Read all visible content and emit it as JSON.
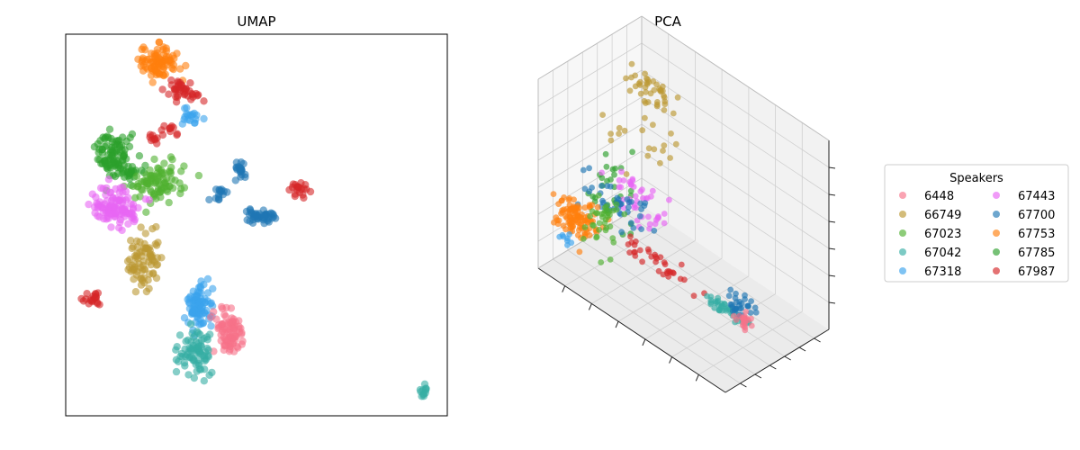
{
  "chart_data": [
    {
      "type": "scatter",
      "title": "UMAP",
      "xlabel": "",
      "ylabel": "",
      "ticks": "none",
      "xlim": [
        0,
        100
      ],
      "ylim": [
        0,
        100
      ],
      "clusters": [
        {
          "speaker": "67753",
          "x": 24.5,
          "y": 92.5,
          "sx": 2.5,
          "sy": 2.0,
          "n": 90
        },
        {
          "speaker": "67987",
          "x": 31.5,
          "y": 85.2,
          "sx": 2.3,
          "sy": 1.4,
          "n": 40
        },
        {
          "speaker": "67318",
          "x": 32.5,
          "y": 78.6,
          "sx": 1.3,
          "sy": 1.3,
          "n": 18
        },
        {
          "speaker": "67987",
          "x": 27.0,
          "y": 75.3,
          "sx": 0.9,
          "sy": 0.9,
          "n": 10
        },
        {
          "speaker": "67987",
          "x": 24.0,
          "y": 72.7,
          "sx": 1.2,
          "sy": 0.7,
          "n": 10
        },
        {
          "speaker": "67785",
          "x": 12.5,
          "y": 69.0,
          "sx": 2.3,
          "sy": 3.5,
          "n": 95
        },
        {
          "speaker": "67785",
          "x": 17.5,
          "y": 63.5,
          "sx": 1.6,
          "sy": 1.0,
          "n": 20
        },
        {
          "speaker": "67023",
          "x": 24.5,
          "y": 60.5,
          "sx": 3.0,
          "sy": 2.5,
          "n": 90
        },
        {
          "speaker": "67443",
          "x": 13.0,
          "y": 55.0,
          "sx": 3.6,
          "sy": 2.5,
          "n": 110
        },
        {
          "speaker": "67700",
          "x": 45.3,
          "y": 64.5,
          "sx": 0.9,
          "sy": 1.4,
          "n": 20
        },
        {
          "speaker": "67700",
          "x": 40.0,
          "y": 58.5,
          "sx": 1.0,
          "sy": 0.9,
          "n": 15
        },
        {
          "speaker": "67987",
          "x": 61.0,
          "y": 59.0,
          "sx": 1.2,
          "sy": 1.1,
          "n": 20
        },
        {
          "speaker": "67700",
          "x": 51.5,
          "y": 52.3,
          "sx": 2.0,
          "sy": 1.2,
          "n": 45
        },
        {
          "speaker": "66749",
          "x": 20.0,
          "y": 40.5,
          "sx": 2.4,
          "sy": 3.5,
          "n": 80
        },
        {
          "speaker": "67987",
          "x": 7.5,
          "y": 30.5,
          "sx": 2.0,
          "sy": 0.8,
          "n": 20
        },
        {
          "speaker": "67318",
          "x": 35.0,
          "y": 29.0,
          "sx": 1.6,
          "sy": 2.8,
          "n": 85
        },
        {
          "speaker": "6448",
          "x": 43.0,
          "y": 22.5,
          "sx": 1.8,
          "sy": 3.0,
          "n": 85
        },
        {
          "speaker": "67042",
          "x": 34.0,
          "y": 16.0,
          "sx": 2.2,
          "sy": 3.3,
          "n": 80
        },
        {
          "speaker": "67042",
          "x": 94.0,
          "y": 6.5,
          "sx": 0.6,
          "sy": 0.8,
          "n": 12
        }
      ]
    },
    {
      "type": "scatter",
      "projection": "3d",
      "title": "PCA",
      "xlabel": "",
      "ylabel": "",
      "zlabel": "",
      "tick_labels": "none",
      "xlim": [
        0,
        1
      ],
      "ylim": [
        0,
        1
      ],
      "zlim": [
        0,
        1
      ],
      "clusters": [
        {
          "speaker": "66749",
          "x": 0.2,
          "y": 0.7,
          "z": 0.85,
          "sx": 0.05,
          "sy": 0.04,
          "sz": 0.04,
          "n": 40
        },
        {
          "speaker": "66749",
          "x": 0.25,
          "y": 0.6,
          "z": 0.65,
          "sx": 0.12,
          "sy": 0.08,
          "sz": 0.12,
          "n": 20
        },
        {
          "speaker": "67785",
          "x": 0.16,
          "y": 0.42,
          "z": 0.42,
          "sx": 0.05,
          "sy": 0.05,
          "sz": 0.12,
          "n": 30
        },
        {
          "speaker": "67443",
          "x": 0.3,
          "y": 0.45,
          "z": 0.4,
          "sx": 0.08,
          "sy": 0.06,
          "sz": 0.06,
          "n": 45
        },
        {
          "speaker": "67700",
          "x": 0.2,
          "y": 0.4,
          "z": 0.35,
          "sx": 0.08,
          "sy": 0.06,
          "sz": 0.05,
          "n": 40
        },
        {
          "speaker": "67753",
          "x": 0.08,
          "y": 0.22,
          "z": 0.25,
          "sx": 0.05,
          "sy": 0.05,
          "sz": 0.04,
          "n": 110
        },
        {
          "speaker": "67023",
          "x": 0.18,
          "y": 0.3,
          "z": 0.28,
          "sx": 0.04,
          "sy": 0.05,
          "sz": 0.05,
          "n": 35
        },
        {
          "speaker": "67987",
          "x": 0.45,
          "y": 0.35,
          "z": 0.2,
          "sx": 0.1,
          "sy": 0.03,
          "sz": 0.02,
          "n": 35
        },
        {
          "speaker": "67318",
          "x": 0.1,
          "y": 0.1,
          "z": 0.2,
          "sx": 0.02,
          "sy": 0.02,
          "sz": 0.02,
          "n": 8
        },
        {
          "speaker": "67042",
          "x": 0.82,
          "y": 0.34,
          "z": 0.2,
          "sx": 0.06,
          "sy": 0.02,
          "sz": 0.01,
          "n": 40
        },
        {
          "speaker": "67700",
          "x": 0.88,
          "y": 0.38,
          "z": 0.24,
          "sx": 0.04,
          "sy": 0.03,
          "sz": 0.03,
          "n": 30
        },
        {
          "speaker": "6448",
          "x": 0.9,
          "y": 0.36,
          "z": 0.2,
          "sx": 0.02,
          "sy": 0.02,
          "sz": 0.02,
          "n": 22
        }
      ]
    }
  ],
  "legend": {
    "title": "Speakers",
    "placement": "right",
    "columns": 2,
    "items": [
      {
        "label": "6448",
        "color": "#f77189"
      },
      {
        "label": "66749",
        "color": "#bb9832"
      },
      {
        "label": "67023",
        "color": "#50b131"
      },
      {
        "label": "67042",
        "color": "#36ada4"
      },
      {
        "label": "67318",
        "color": "#3ba3ec"
      },
      {
        "label": "67443",
        "color": "#e866f4"
      },
      {
        "label": "67700",
        "color": "#1f77b4"
      },
      {
        "label": "67753",
        "color": "#ff7f0e"
      },
      {
        "label": "67785",
        "color": "#2ca02c"
      },
      {
        "label": "67987",
        "color": "#d62728"
      }
    ]
  }
}
